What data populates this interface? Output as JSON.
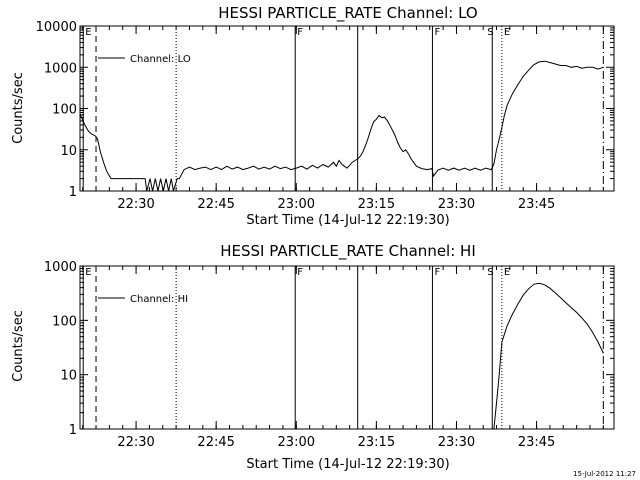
{
  "footer_timestamp": "15-Jul-2012 11:27",
  "chart_data": [
    {
      "type": "line",
      "title": "HESSI PARTICLE_RATE Channel: LO",
      "xlabel": "Start Time (14-Jul-12 22:19:30)",
      "ylabel": "Counts/sec",
      "yscale": "log",
      "ylim": [
        1,
        10000
      ],
      "xlim_minutes": [
        0,
        100
      ],
      "x_ticks": [
        {
          "t": 10.5,
          "label": "22:30"
        },
        {
          "t": 25.5,
          "label": "22:45"
        },
        {
          "t": 40.5,
          "label": "23:00"
        },
        {
          "t": 55.5,
          "label": "23:15"
        },
        {
          "t": 70.5,
          "label": "23:30"
        },
        {
          "t": 85.5,
          "label": "23:45"
        }
      ],
      "y_ticks": [
        {
          "v": 1,
          "label": "1"
        },
        {
          "v": 10,
          "label": "10"
        },
        {
          "v": 100,
          "label": "100"
        },
        {
          "v": 1000,
          "label": "1000"
        },
        {
          "v": 10000,
          "label": "10000"
        }
      ],
      "legend": {
        "label": "Channel: LO",
        "placement": "top-left"
      },
      "markers": [
        {
          "t": 0.6,
          "style": "solid",
          "label": "E"
        },
        {
          "t": 3.0,
          "style": "dashed",
          "label": ""
        },
        {
          "t": 18.0,
          "style": "dotted",
          "label": ""
        },
        {
          "t": 40.3,
          "style": "solid",
          "label": "F"
        },
        {
          "t": 52.0,
          "style": "solid",
          "label": ""
        },
        {
          "t": 66.0,
          "style": "solid",
          "label": "F"
        },
        {
          "t": 77.2,
          "style": "solid",
          "label": "S"
        },
        {
          "t": 79.0,
          "style": "dotted",
          "label": "E"
        },
        {
          "t": 98.0,
          "style": "dashdot",
          "label": ""
        }
      ],
      "series": [
        {
          "x": [
            0,
            0.5,
            1,
            1.6,
            2.2,
            2.8,
            3.3,
            3.8,
            4.4,
            5,
            5.8,
            6.5,
            7.2,
            8,
            8.8,
            9.5,
            10.5,
            11.4,
            12.2,
            12.5,
            13.1,
            13.6,
            14.1,
            14.6,
            15.1,
            15.6,
            16.1,
            16.6,
            17.1,
            17.5,
            18.2,
            18.6,
            19.5,
            20.5,
            21.5,
            22.5,
            23.5,
            24.5,
            25.5,
            26.5,
            27.5,
            28.5,
            29.5,
            30.5,
            31.5,
            32.5,
            33.5,
            34.5,
            35.5,
            36.5,
            37.5,
            38.5,
            39.5,
            40.5,
            41.5,
            42.5,
            43.5,
            44.5,
            45.5,
            46.5,
            47.5,
            48,
            48.5,
            49,
            49.5,
            50,
            50.5,
            51,
            51.5,
            52,
            52.5,
            53,
            53.5,
            54,
            54.5,
            55,
            55.5,
            56,
            56.5,
            57,
            57.5,
            58,
            58.5,
            59,
            59.5,
            60,
            60.5,
            61,
            61.5,
            62,
            63,
            64,
            65,
            65.9,
            66.2,
            67,
            68,
            69,
            70,
            71,
            72,
            73,
            74,
            75,
            76,
            77,
            77.5,
            78,
            78.5,
            79,
            79.5,
            80,
            81,
            82,
            83,
            84,
            85,
            86,
            87,
            88,
            89,
            90,
            91,
            92,
            93,
            94,
            95,
            96,
            97,
            98
          ],
          "y": [
            75,
            52,
            38,
            28,
            24,
            22,
            18,
            9,
            5,
            3,
            2,
            2,
            2,
            2,
            2,
            2,
            2,
            2,
            2,
            1,
            2,
            1,
            2,
            1,
            2,
            1,
            2,
            1,
            2,
            1,
            2,
            2,
            3.3,
            3.8,
            3.3,
            3.6,
            3.8,
            3.3,
            3.8,
            3.3,
            4,
            3.4,
            3.8,
            3.3,
            3.6,
            4,
            3.4,
            3.8,
            3.4,
            4,
            3.5,
            3.8,
            3.3,
            3.6,
            4,
            3.4,
            4.2,
            3.6,
            4.4,
            3.8,
            5,
            4,
            5.5,
            4.5,
            4,
            3.6,
            4.2,
            5,
            5.5,
            6,
            7,
            9,
            13,
            20,
            32,
            48,
            55,
            68,
            60,
            62,
            52,
            40,
            30,
            22,
            15,
            11,
            9,
            10,
            8,
            6,
            4,
            3.5,
            3.3,
            3.5,
            2.3,
            3.2,
            3.6,
            3.2,
            3.6,
            3.2,
            3.6,
            3.2,
            3.6,
            3.2,
            3.6,
            3.3,
            4.5,
            10,
            18,
            35,
            70,
            120,
            230,
            380,
            600,
            850,
            1150,
            1350,
            1400,
            1300,
            1200,
            1100,
            1100,
            1000,
            1050,
            950,
            1000,
            1000,
            900,
            1000
          ]
        }
      ]
    },
    {
      "type": "line",
      "title": "HESSI PARTICLE_RATE Channel: HI",
      "xlabel": "Start Time (14-Jul-12 22:19:30)",
      "ylabel": "Counts/sec",
      "yscale": "log",
      "ylim": [
        1,
        1000
      ],
      "xlim_minutes": [
        0,
        100
      ],
      "x_ticks": [
        {
          "t": 10.5,
          "label": "22:30"
        },
        {
          "t": 25.5,
          "label": "22:45"
        },
        {
          "t": 40.5,
          "label": "23:00"
        },
        {
          "t": 55.5,
          "label": "23:15"
        },
        {
          "t": 70.5,
          "label": "23:30"
        },
        {
          "t": 85.5,
          "label": "23:45"
        }
      ],
      "y_ticks": [
        {
          "v": 1,
          "label": "1"
        },
        {
          "v": 10,
          "label": "10"
        },
        {
          "v": 100,
          "label": "100"
        },
        {
          "v": 1000,
          "label": "1000"
        }
      ],
      "legend": {
        "label": "Channel: HI",
        "placement": "top-left"
      },
      "markers": [
        {
          "t": 0.6,
          "style": "solid",
          "label": "E"
        },
        {
          "t": 3.0,
          "style": "dashed",
          "label": ""
        },
        {
          "t": 18.0,
          "style": "dotted",
          "label": ""
        },
        {
          "t": 40.3,
          "style": "solid",
          "label": "F"
        },
        {
          "t": 52.0,
          "style": "solid",
          "label": ""
        },
        {
          "t": 66.0,
          "style": "solid",
          "label": "F"
        },
        {
          "t": 77.2,
          "style": "solid",
          "label": "S"
        },
        {
          "t": 79.0,
          "style": "dotted",
          "label": "E"
        },
        {
          "t": 98.0,
          "style": "dashdot",
          "label": ""
        }
      ],
      "series": [
        {
          "x": [
            77.5,
            78,
            78.5,
            79,
            80,
            81,
            82,
            83,
            84,
            85,
            86,
            87,
            88,
            89,
            90,
            91,
            92,
            93,
            94,
            95,
            96,
            97,
            98
          ],
          "y": [
            1,
            3,
            10,
            40,
            80,
            130,
            200,
            290,
            380,
            460,
            480,
            450,
            390,
            320,
            260,
            210,
            170,
            140,
            110,
            85,
            60,
            40,
            25
          ]
        }
      ]
    }
  ]
}
